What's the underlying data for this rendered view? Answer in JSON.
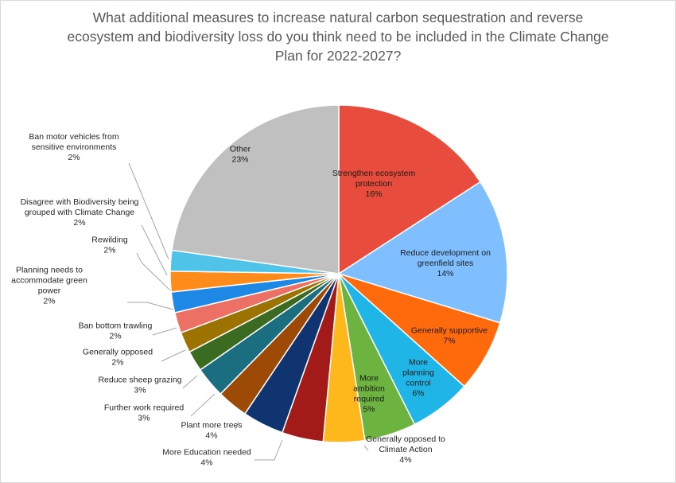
{
  "chart_data": {
    "type": "pie",
    "title": "What additional measures to increase natural carbon sequestration and reverse ecosystem and biodiversity loss do you think need to be included in the Climate Change Plan for 2022-2027?",
    "title_lines": [
      "What additional measures to increase natural carbon sequestration and reverse",
      "ecosystem and biodiversity loss do you think need to be included in the Climate Change",
      "Plan for 2022-2027?"
    ],
    "slices": [
      {
        "name": "Strengthen ecosystem protection",
        "label_lines": [
          "Strengthen ecosystem",
          "protection"
        ],
        "value": 16,
        "label": "16%",
        "color": "#e74c3c"
      },
      {
        "name": "Reduce development on greenfield sites",
        "label_lines": [
          "Reduce development on",
          "greenfield sites"
        ],
        "value": 14,
        "label": "14%",
        "color": "#7fbfff"
      },
      {
        "name": "Generally supportive",
        "label_lines": [
          "Generally supportive"
        ],
        "value": 7,
        "label": "7%",
        "color": "#ff6a0d"
      },
      {
        "name": "More planning control",
        "label_lines": [
          "More",
          "planning",
          "control"
        ],
        "value": 6,
        "label": "6%",
        "color": "#1fb5e6"
      },
      {
        "name": "More ambition required",
        "label_lines": [
          "More",
          "ambition",
          "required"
        ],
        "value": 5,
        "label": "5%",
        "color": "#6db33f"
      },
      {
        "name": "Generally opposed to Climate Action",
        "label_lines": [
          "Generally opposed to",
          "Climate Action"
        ],
        "value": 4,
        "label": "4%",
        "color": "#ffb81c"
      },
      {
        "name": "More Education needed",
        "label_lines": [
          "More Education needed"
        ],
        "value": 4,
        "label": "4%",
        "color": "#a31b18"
      },
      {
        "name": "Plant more trees",
        "label_lines": [
          "Plant more trees"
        ],
        "value": 4,
        "label": "4%",
        "color": "#0f3470"
      },
      {
        "name": "Further work required",
        "label_lines": [
          "Further work required"
        ],
        "value": 3,
        "label": "3%",
        "color": "#9c4a06"
      },
      {
        "name": "Reduce sheep grazing",
        "label_lines": [
          "Reduce sheep grazing"
        ],
        "value": 3,
        "label": "3%",
        "color": "#1a6e80"
      },
      {
        "name": "Generally opposed",
        "label_lines": [
          "Generally opposed"
        ],
        "value": 2,
        "label": "2%",
        "color": "#3a6b21"
      },
      {
        "name": "Ban bottom trawling",
        "label_lines": [
          "Ban bottom trawling"
        ],
        "value": 2,
        "label": "2%",
        "color": "#9c7300"
      },
      {
        "name": "Planning needs to accommodate green power",
        "label_lines": [
          "Planning needs to",
          "accommodate green",
          "power"
        ],
        "value": 2,
        "label": "2%",
        "color": "#ec7063"
      },
      {
        "name": "Rewilding",
        "label_lines": [
          "Rewilding"
        ],
        "value": 2,
        "label": "2%",
        "color": "#1e88e5"
      },
      {
        "name": "Disagree with Biodiversity being grouped with Climate Change",
        "label_lines": [
          "Disagree with Biodiversity being",
          "grouped with Climate Change"
        ],
        "value": 2,
        "label": "2%",
        "color": "#ff8c1a"
      },
      {
        "name": "Ban motor vehicles from sensitive environments",
        "label_lines": [
          "Ban motor vehicles from",
          "sensitive environments"
        ],
        "value": 2,
        "label": "2%",
        "color": "#4fc3e8"
      },
      {
        "name": "Other",
        "label_lines": [
          "Other"
        ],
        "value": 23,
        "label": "23%",
        "color": "#c0c0c0"
      }
    ],
    "legend": "none",
    "label_style": "inside labels for large slices, outside labels with leader lines for small slices"
  }
}
